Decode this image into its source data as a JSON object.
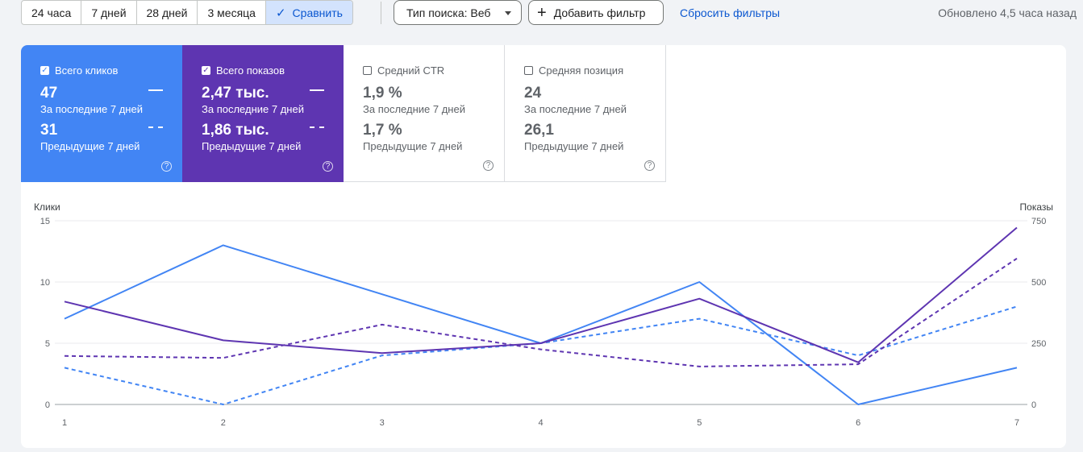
{
  "toolbar": {
    "ranges": [
      "24 часа",
      "7 дней",
      "28 дней",
      "3 месяца"
    ],
    "compare_label": "Сравнить",
    "search_type_label": "Тип поиска: Веб",
    "add_filter_label": "Добавить фильтр",
    "reset_label": "Сбросить фильтры",
    "updated_label": "Обновлено 4,5 часа назад"
  },
  "metrics": [
    {
      "label": "Всего кликов",
      "checked": true,
      "current": "47",
      "current_period": "За последние 7 дней",
      "previous": "31",
      "previous_period": "Предыдущие 7 дней",
      "color": "#4285f4"
    },
    {
      "label": "Всего показов",
      "checked": true,
      "current": "2,47 тыс.",
      "current_period": "За последние 7 дней",
      "previous": "1,86 тыс.",
      "previous_period": "Предыдущие 7 дней",
      "color": "#5e35b1"
    },
    {
      "label": "Средний CTR",
      "checked": false,
      "current": "1,9 %",
      "current_period": "За последние 7 дней",
      "previous": "1,7 %",
      "previous_period": "Предыдущие 7 дней"
    },
    {
      "label": "Средняя позиция",
      "checked": false,
      "current": "24",
      "current_period": "За последние 7 дней",
      "previous": "26,1",
      "previous_period": "Предыдущие 7 дней"
    }
  ],
  "chart_data": {
    "type": "line",
    "x": [
      1,
      2,
      3,
      4,
      5,
      6,
      7
    ],
    "y_left_label": "Клики",
    "y_right_label": "Показы",
    "y_left_lim": [
      0,
      15
    ],
    "y_right_lim": [
      0,
      750
    ],
    "y_left_ticks": [
      0,
      5,
      10,
      15
    ],
    "y_right_ticks": [
      0,
      250,
      500,
      750
    ],
    "grid": true,
    "series": [
      {
        "axis": "left",
        "style": "solid",
        "color": "#4285f4",
        "values": [
          7,
          13,
          9,
          5,
          10,
          0,
          3
        ]
      },
      {
        "axis": "left",
        "style": "dashed",
        "color": "#4285f4",
        "values": [
          3,
          0,
          4,
          5,
          7,
          4,
          8
        ]
      },
      {
        "axis": "right",
        "style": "solid",
        "color": "#5e35b1",
        "values": [
          420,
          262,
          210,
          250,
          432,
          172,
          722
        ]
      },
      {
        "axis": "right",
        "style": "dashed",
        "color": "#5e35b1",
        "values": [
          198,
          190,
          326,
          225,
          155,
          164,
          596
        ]
      }
    ]
  }
}
